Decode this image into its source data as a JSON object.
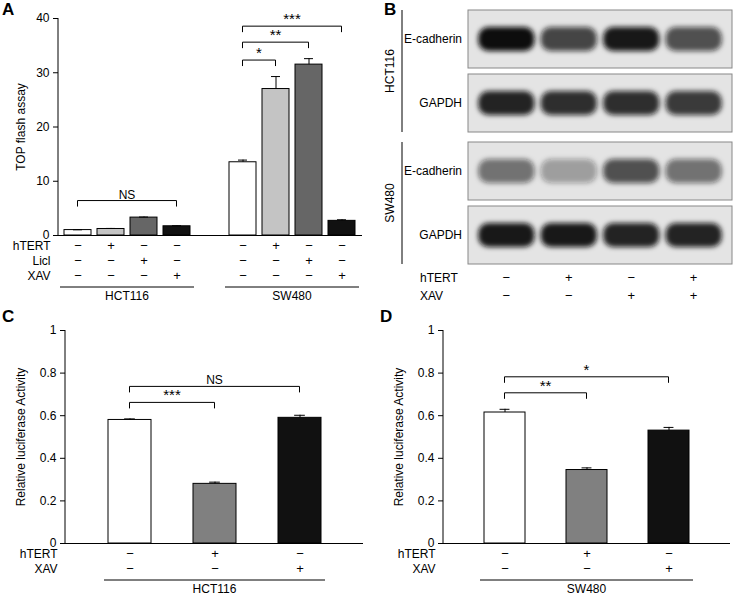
{
  "chart_data": [
    {
      "panel": "A",
      "type": "bar",
      "ylabel": "TOP flash assay",
      "ylim": [
        0,
        40
      ],
      "yticks": [
        0,
        10,
        20,
        30,
        40
      ],
      "colors": [
        "#ffffff",
        "#c4c4c4",
        "#666666",
        "#111111"
      ],
      "groups": [
        {
          "name": "HCT116",
          "values": [
            1.0,
            1.2,
            3.3,
            1.7
          ],
          "errors": [
            0.05,
            0.1,
            0.1,
            0.1
          ]
        },
        {
          "name": "SW480",
          "values": [
            13.5,
            27.0,
            31.5,
            2.7
          ],
          "errors": [
            0.4,
            2.3,
            1.1,
            0.2
          ]
        }
      ],
      "conditions": [
        {
          "name": "hTERT",
          "signs": [
            "−",
            "+",
            "−",
            "−"
          ]
        },
        {
          "name": "Licl",
          "signs": [
            "−",
            "−",
            "+",
            "−"
          ]
        },
        {
          "name": "XAV",
          "signs": [
            "−",
            "−",
            "−",
            "+"
          ]
        }
      ],
      "significance": [
        {
          "group": 0,
          "bars": [
            0,
            3
          ],
          "label": "NS"
        },
        {
          "group": 1,
          "bars": [
            0,
            1
          ],
          "label": "*"
        },
        {
          "group": 1,
          "bars": [
            0,
            2
          ],
          "label": "**"
        },
        {
          "group": 1,
          "bars": [
            0,
            3
          ],
          "label": "***"
        }
      ]
    },
    {
      "panel": "B",
      "type": "western_blot",
      "blots": [
        {
          "cell_line": "HCT116",
          "rows": [
            {
              "protein": "E-cadherin",
              "intensity": [
                1.0,
                0.75,
                0.95,
                0.7
              ]
            },
            {
              "protein": "GAPDH",
              "intensity": [
                0.9,
                0.85,
                0.85,
                0.8
              ]
            }
          ]
        },
        {
          "cell_line": "SW480",
          "rows": [
            {
              "protein": "E-cadherin",
              "intensity": [
                0.55,
                0.35,
                0.7,
                0.55
              ]
            },
            {
              "protein": "GAPDH",
              "intensity": [
                0.95,
                0.95,
                0.9,
                0.9
              ]
            }
          ]
        }
      ],
      "conditions": [
        {
          "name": "hTERT",
          "signs": [
            "−",
            "+",
            "−",
            "+"
          ]
        },
        {
          "name": "XAV",
          "signs": [
            "−",
            "−",
            "+",
            "+"
          ]
        }
      ]
    },
    {
      "panel": "C",
      "type": "bar",
      "ylabel": "Relative luciferase Activity",
      "ylim": [
        0,
        1
      ],
      "yticks": [
        0,
        0.2,
        0.4,
        0.6,
        0.8,
        1
      ],
      "colors": [
        "#ffffff",
        "#808080",
        "#111111"
      ],
      "groups": [
        {
          "name": "HCT116",
          "values": [
            0.58,
            0.28,
            0.59
          ],
          "errors": [
            0.005,
            0.008,
            0.012
          ]
        }
      ],
      "conditions": [
        {
          "name": "hTERT",
          "signs": [
            "−",
            "+",
            "−"
          ]
        },
        {
          "name": "XAV",
          "signs": [
            "−",
            "−",
            "+"
          ]
        }
      ],
      "significance": [
        {
          "group": 0,
          "bars": [
            0,
            1
          ],
          "label": "***"
        },
        {
          "group": 0,
          "bars": [
            0,
            2
          ],
          "label": "NS"
        }
      ]
    },
    {
      "panel": "D",
      "type": "bar",
      "ylabel": "Relative luciferase Activity",
      "ylim": [
        0,
        1
      ],
      "yticks": [
        0,
        0.2,
        0.4,
        0.6,
        0.8,
        1
      ],
      "colors": [
        "#ffffff",
        "#808080",
        "#111111"
      ],
      "groups": [
        {
          "name": "SW480",
          "values": [
            0.615,
            0.345,
            0.53
          ],
          "errors": [
            0.015,
            0.01,
            0.015
          ]
        }
      ],
      "conditions": [
        {
          "name": "hTERT",
          "signs": [
            "−",
            "+",
            "−"
          ]
        },
        {
          "name": "XAV",
          "signs": [
            "−",
            "−",
            "+"
          ]
        }
      ],
      "significance": [
        {
          "group": 0,
          "bars": [
            0,
            1
          ],
          "label": "**"
        },
        {
          "group": 0,
          "bars": [
            0,
            2
          ],
          "label": "*"
        }
      ]
    }
  ]
}
